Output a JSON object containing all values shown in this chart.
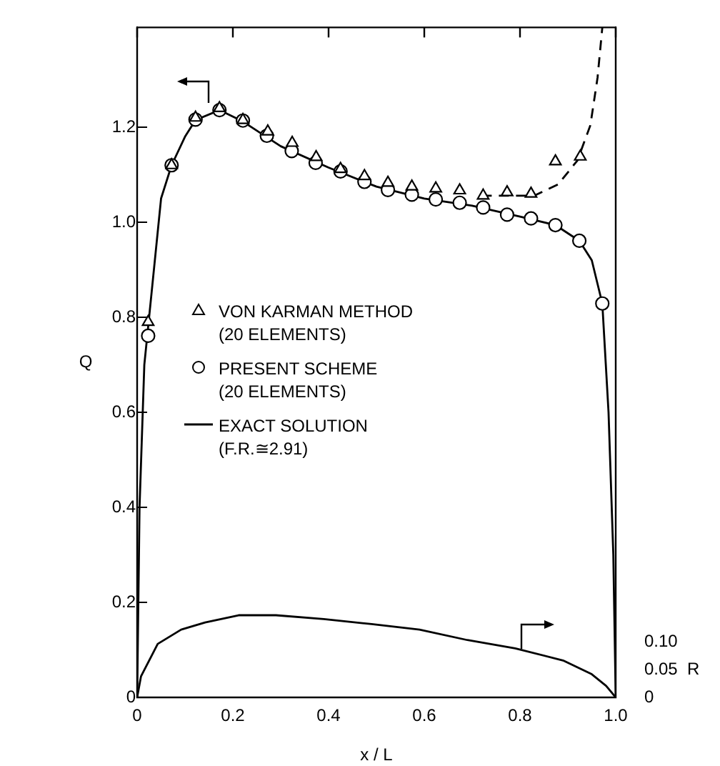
{
  "chart_data": {
    "type": "line",
    "xlabel": "x / L",
    "ylabel": "Q",
    "y2label": "R",
    "legend": "left",
    "xlim": [
      0,
      1.0
    ],
    "xticks": [
      0,
      0.2,
      0.4,
      0.6,
      0.8,
      {
        "value": 1.0,
        "label": "1.0"
      }
    ],
    "ylim": [
      0,
      1.41
    ],
    "yticks": [
      0,
      0.2,
      0.4,
      0.6,
      0.8,
      {
        "value": 1.0,
        "label": "1.0"
      },
      1.2
    ],
    "y2lim": [
      0,
      1.215
    ],
    "y2ticks": [
      0,
      0.05,
      {
        "value": 0.1,
        "label": "0.10"
      }
    ],
    "series": [
      {
        "name": "VON KARMAN METHOD\n(20 ELEMENTS)",
        "type": "scatter",
        "marker": "triangle",
        "color": "#000000",
        "x": [
          0.023,
          0.072,
          0.122,
          0.172,
          0.221,
          0.273,
          0.324,
          0.374,
          0.425,
          0.475,
          0.524,
          0.574,
          0.624,
          0.674,
          0.723,
          0.773,
          0.823,
          0.874,
          0.926
        ],
        "values": [
          0.79,
          1.12,
          1.22,
          1.24,
          1.215,
          1.191,
          1.167,
          1.137,
          1.112,
          1.097,
          1.083,
          1.075,
          1.071,
          1.067,
          1.056,
          1.063,
          1.06,
          1.128,
          1.138
        ]
      },
      {
        "name": "PRESENT SCHEME\n(20 ELEMENTS)",
        "type": "scatter",
        "marker": "circle",
        "color": "#000000",
        "x": [
          0.023,
          0.072,
          0.122,
          0.172,
          0.221,
          0.271,
          0.323,
          0.373,
          0.425,
          0.475,
          0.524,
          0.574,
          0.624,
          0.674,
          0.723,
          0.773,
          0.823,
          0.874,
          0.924,
          0.972
        ],
        "values": [
          0.761,
          1.12,
          1.216,
          1.236,
          1.214,
          1.182,
          1.15,
          1.125,
          1.107,
          1.085,
          1.068,
          1.058,
          1.048,
          1.041,
          1.031,
          1.016,
          1.008,
          0.994,
          0.961,
          0.829
        ]
      },
      {
        "name": "EXACT SOLUTION\n(F.R.≅2.91)",
        "type": "line",
        "marker": "none",
        "line_style": "solid",
        "color": "#000000",
        "x": [
          0,
          0.005,
          0.015,
          0.023,
          0.05,
          0.072,
          0.1,
          0.122,
          0.172,
          0.221,
          0.3,
          0.4,
          0.5,
          0.6,
          0.7,
          0.8,
          0.874,
          0.924,
          0.95,
          0.972,
          0.985,
          0.995,
          1.0
        ],
        "values": [
          0,
          0.4,
          0.7,
          0.78,
          1.05,
          1.12,
          1.18,
          1.215,
          1.236,
          1.212,
          1.16,
          1.115,
          1.075,
          1.05,
          1.035,
          1.012,
          0.994,
          0.961,
          0.92,
          0.829,
          0.6,
          0.3,
          0
        ]
      },
      {
        "type": "line",
        "marker": "none",
        "line_style": "dashed",
        "color": "#000000",
        "x": [
          0.72,
          0.83,
          0.88,
          0.92,
          0.947,
          0.962,
          0.972
        ],
        "values": [
          1.056,
          1.056,
          1.08,
          1.13,
          1.204,
          1.304,
          1.41
        ]
      },
      {
        "type": "line",
        "marker": "none",
        "line_style": "solid",
        "axis": "y2",
        "color": "#000000",
        "x": [
          0,
          0.008,
          0.043,
          0.092,
          0.142,
          0.212,
          0.29,
          0.39,
          0.49,
          0.59,
          0.69,
          0.79,
          0.89,
          0.95,
          0.98,
          1.0
        ],
        "values": [
          0,
          0.038,
          0.097,
          0.123,
          0.136,
          0.149,
          0.149,
          0.142,
          0.133,
          0.123,
          0.104,
          0.089,
          0.067,
          0.042,
          0.021,
          0
        ]
      }
    ]
  }
}
